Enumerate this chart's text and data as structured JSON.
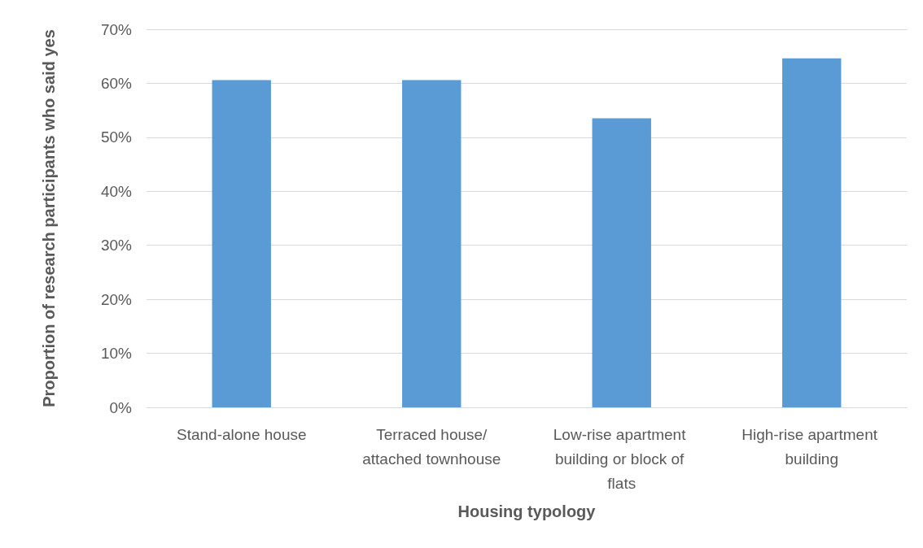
{
  "chart_data": {
    "type": "bar",
    "xlabel": "Housing typology",
    "ylabel": "Proportion of research participants who said yes",
    "categories": [
      "Stand-alone house",
      "Terraced house/attached townhouse",
      "Low-rise apartment building or block of flats",
      "High-rise apartment building"
    ],
    "values": [
      60.6,
      60.6,
      53.5,
      64.6
    ],
    "color": "#5b9bd5",
    "ylim": [
      0,
      70
    ],
    "yticks": [
      {
        "value": 0,
        "label": "0%"
      },
      {
        "value": 10,
        "label": "10%"
      },
      {
        "value": 20,
        "label": "20%"
      },
      {
        "value": 30,
        "label": "30%"
      },
      {
        "value": 40,
        "label": "40%"
      },
      {
        "value": 50,
        "label": "50%"
      },
      {
        "value": 60,
        "label": "60%"
      },
      {
        "value": 70,
        "label": "70%"
      }
    ],
    "grid": "y"
  }
}
